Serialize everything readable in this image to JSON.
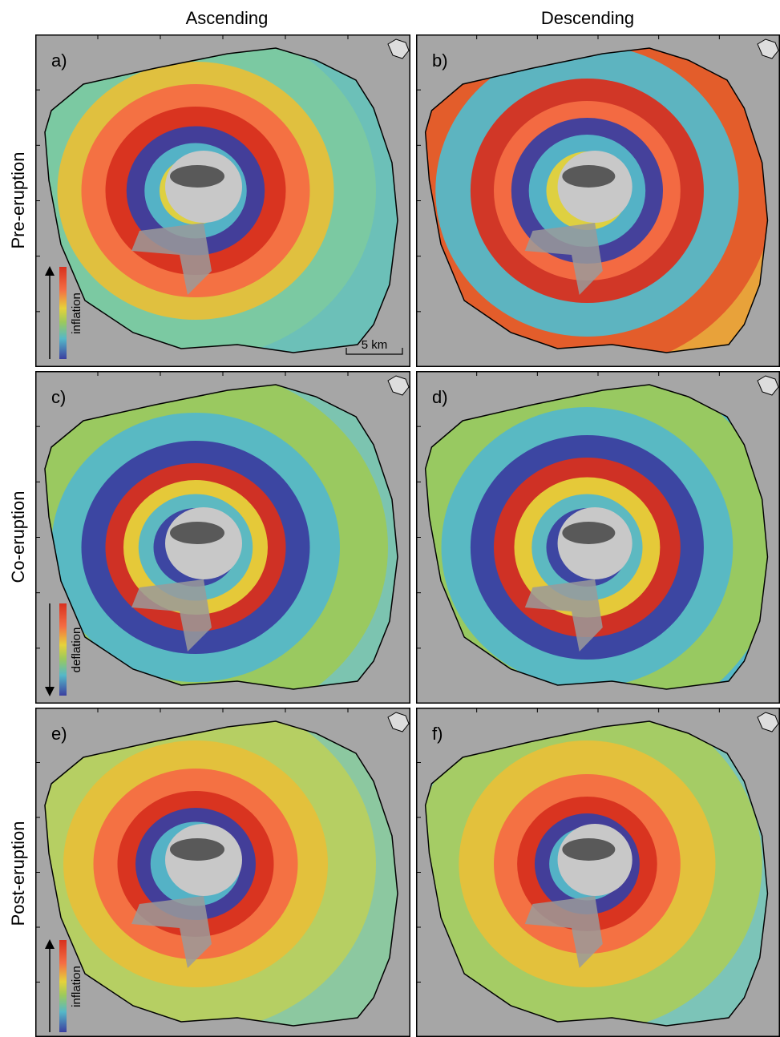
{
  "columns": [
    "Ascending",
    "Descending"
  ],
  "rows": [
    "Pre-eruption",
    "Co-eruption",
    "Post-eruption"
  ],
  "panels": [
    "a)",
    "b)",
    "c)",
    "d)",
    "e)",
    "f)"
  ],
  "colorbars": [
    "inflation",
    "deflation",
    "inflation"
  ],
  "scale_bar": "5 km"
}
